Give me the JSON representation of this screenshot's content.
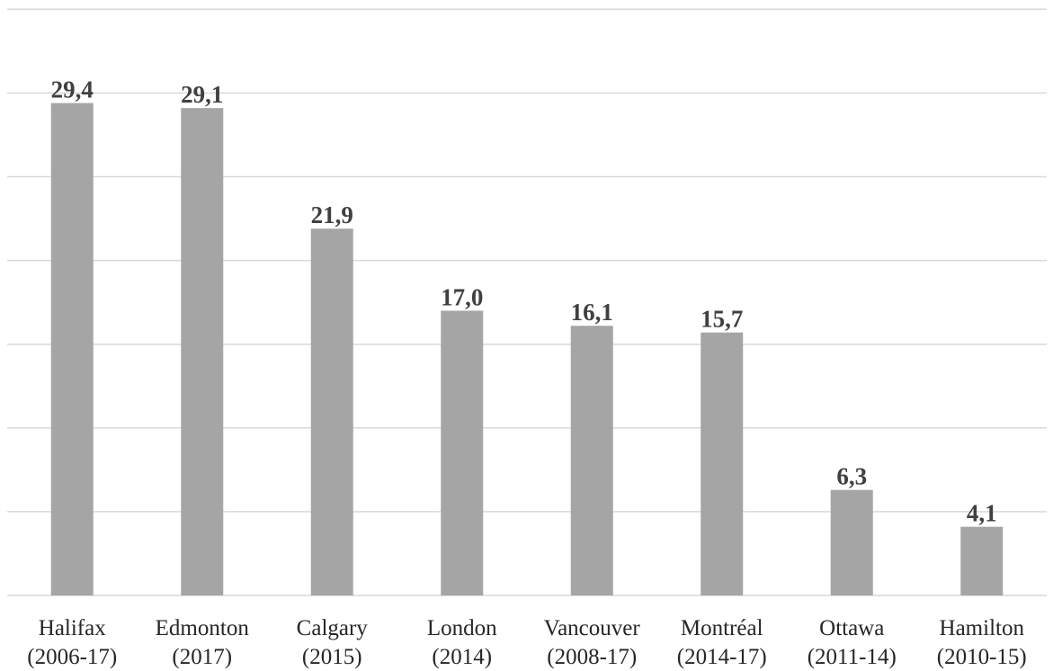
{
  "chart_data": {
    "type": "bar",
    "categories": [
      [
        "Halifax",
        "(2006-17)"
      ],
      [
        "Edmonton",
        "(2017)"
      ],
      [
        "Calgary",
        "(2015)"
      ],
      [
        "London",
        "(2014)"
      ],
      [
        "Vancouver",
        "(2008-17)"
      ],
      [
        "Montréal",
        "(2014-17)"
      ],
      [
        "Ottawa",
        "(2011-14)"
      ],
      [
        "Hamilton",
        "(2010-15)"
      ]
    ],
    "values": [
      29.4,
      29.1,
      21.9,
      17.0,
      16.1,
      15.7,
      6.3,
      4.1
    ],
    "data_labels": [
      "29,4",
      "29,1",
      "21,9",
      "17,0",
      "16,1",
      "15,7",
      "6,3",
      "4,1"
    ],
    "title": "",
    "xlabel": "",
    "ylabel": "",
    "ylim": [
      0,
      35
    ],
    "grid": true,
    "y_tick_labels_shown": false,
    "legend": "none",
    "colors": {
      "bar": "#a5a5a5",
      "grid": "#d9d9d9",
      "data_label": "#404040",
      "category_label": "#262626"
    }
  }
}
